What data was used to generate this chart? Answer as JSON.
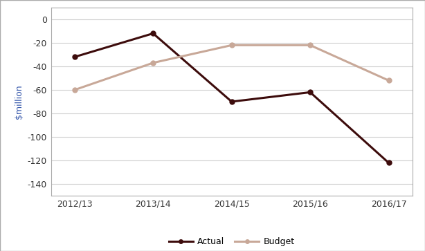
{
  "categories": [
    "2012/13",
    "2013/14",
    "2014/15",
    "2015/16",
    "2016/17"
  ],
  "actual_values": [
    -32,
    -12,
    -70,
    -62,
    -122
  ],
  "budget_values": [
    -60,
    -37,
    -22,
    -22,
    -52
  ],
  "actual_color": "#3d0c0c",
  "budget_color": "#c8a898",
  "ylabel": "$million",
  "ylim": [
    -150,
    10
  ],
  "yticks": [
    0,
    -20,
    -40,
    -60,
    -80,
    -100,
    -120,
    -140
  ],
  "legend_labels": [
    "Actual",
    "Budget"
  ],
  "line_width": 2.2,
  "marker": "o",
  "marker_size": 5,
  "figure_border_color": "#aaaaaa",
  "grid_color": "#d0d0d0",
  "tick_label_color": "#555555",
  "axis_label_color": "#3355aa"
}
